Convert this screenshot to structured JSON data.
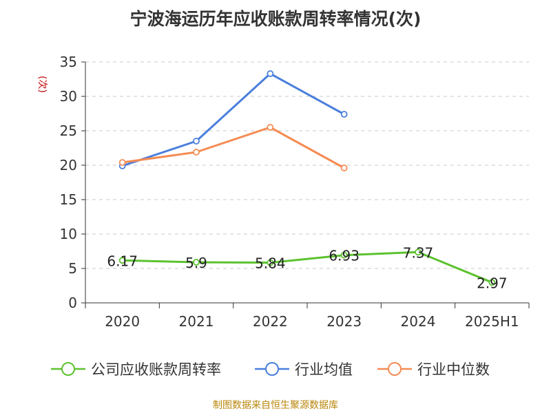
{
  "chart_data": {
    "type": "line",
    "title": "宁波海运历年应收账款周转率情况(次)",
    "unit_label": "(次)",
    "categories": [
      "2020",
      "2021",
      "2022",
      "2023",
      "2024",
      "2025H1"
    ],
    "ylim": [
      0,
      35
    ],
    "yticks": [
      0,
      5,
      10,
      15,
      20,
      25,
      30,
      35
    ],
    "grid": true,
    "legend_position": "bottom",
    "series": [
      {
        "name": "公司应收账款周转率",
        "color": "#5cc22e",
        "values": [
          6.17,
          5.9,
          5.84,
          6.93,
          7.37,
          2.97
        ],
        "labels": [
          "6.17",
          "5.9",
          "5.84",
          "6.93",
          "7.37",
          "2.97"
        ]
      },
      {
        "name": "行业均值",
        "color": "#4a7fdc",
        "values": [
          19.9,
          23.5,
          33.3,
          27.4,
          null,
          null
        ]
      },
      {
        "name": "行业中位数",
        "color": "#f58b52",
        "values": [
          20.4,
          21.9,
          25.5,
          19.6,
          null,
          null
        ]
      }
    ]
  },
  "source": "制图数据来自恒生聚源数据库"
}
